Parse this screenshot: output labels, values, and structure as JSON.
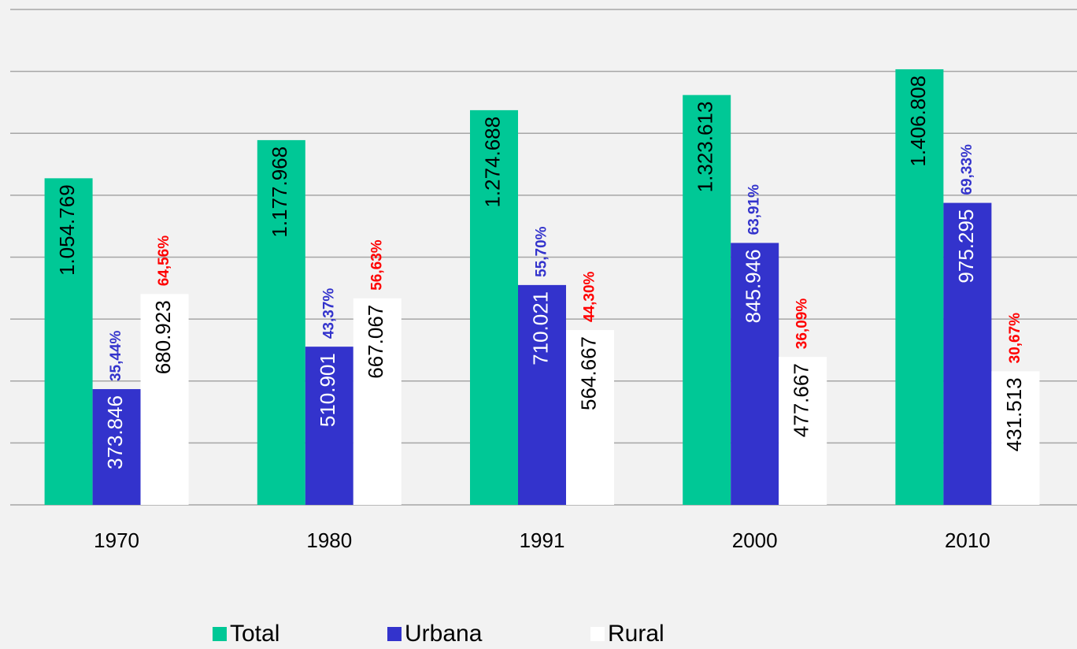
{
  "chart_data": {
    "type": "bar",
    "categories": [
      "1970",
      "1980",
      "1991",
      "2000",
      "2010"
    ],
    "series": [
      {
        "name": "Total",
        "color": "#00c896",
        "label_color": "#000000",
        "values": [
          1054769,
          1177968,
          1274688,
          1323613,
          1406808
        ],
        "value_labels": [
          "1.054.769",
          "1.177.968",
          "1.274.688",
          "1.323.613",
          "1.406.808"
        ]
      },
      {
        "name": "Urbana",
        "color": "#3333cc",
        "label_color": "#ffffff",
        "share_color": "#3333cc",
        "values": [
          373846,
          510901,
          710021,
          845946,
          975295
        ],
        "value_labels": [
          "373.846",
          "510.901",
          "710.021",
          "845.946",
          "975.295"
        ],
        "shares": [
          35.44,
          43.37,
          55.7,
          63.91,
          69.33
        ],
        "share_labels": [
          "35,44%",
          "43,37%",
          "55,70%",
          "63,91%",
          "69,33%"
        ]
      },
      {
        "name": "Rural",
        "color": "#ffffff",
        "label_color": "#000000",
        "share_color": "#ff0000",
        "values": [
          680923,
          667067,
          564667,
          477667,
          431513
        ],
        "value_labels": [
          "680.923",
          "667.067",
          "564.667",
          "477.667",
          "431.513"
        ],
        "shares": [
          64.56,
          56.63,
          44.3,
          36.09,
          30.67
        ],
        "share_labels": [
          "64,56%",
          "56,63%",
          "44,30%",
          "36,09%",
          "30,67%"
        ]
      }
    ],
    "ylim": [
      0,
      1600000
    ],
    "yticks": [
      0,
      200000,
      400000,
      600000,
      800000,
      1000000,
      1200000,
      1400000,
      1600000
    ],
    "grid": true,
    "legend": "bottom"
  }
}
